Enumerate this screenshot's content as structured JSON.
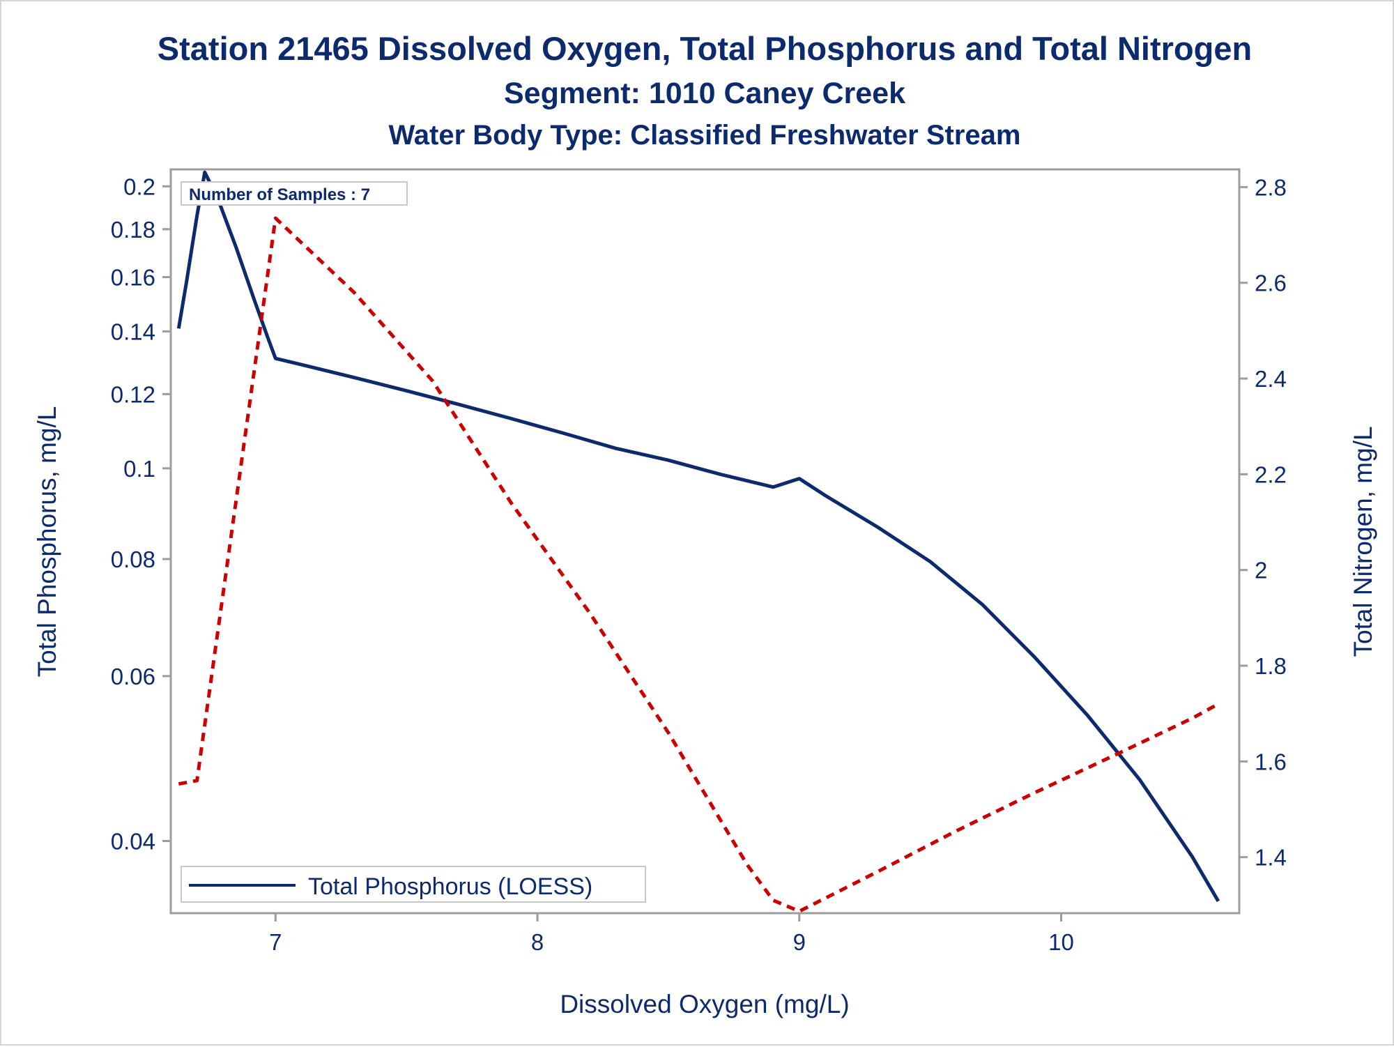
{
  "chart_data": {
    "type": "line",
    "title": "Station 21465  Dissolved Oxygen, Total Phosphorus and Total Nitrogen",
    "subtitle": "Segment: 1010  Caney Creek",
    "subtitle2": "Water Body Type: Classified Freshwater Stream",
    "xlabel": "Dissolved Oxygen (mg/L)",
    "ylabel": "Total Phosphorus, mg/L",
    "y2label": "Total Nitrogen, mg/L",
    "xlim": [
      6.6,
      10.68
    ],
    "ylim": [
      0.0335,
      0.2085
    ],
    "y_scale": "log",
    "y2lim": [
      1.283,
      2.837
    ],
    "x_ticks": [
      7,
      8,
      9,
      10
    ],
    "x_tick_labels": [
      "7",
      "8",
      "9",
      "10"
    ],
    "y_ticks": [
      0.04,
      0.06,
      0.08,
      0.1,
      0.12,
      0.14,
      0.16,
      0.18,
      0.2
    ],
    "y_tick_labels": [
      "0.04",
      "0.06",
      "0.08",
      "0.1",
      "0.12",
      "0.14",
      "0.16",
      "0.18",
      "0.2"
    ],
    "y2_ticks": [
      1.4,
      1.6,
      1.8,
      2.0,
      2.2,
      2.4,
      2.6,
      2.8
    ],
    "y2_tick_labels": [
      "1.4",
      "1.6",
      "1.8",
      "2",
      "2.2",
      "2.4",
      "2.6",
      "2.8"
    ],
    "annotation": "Number of Samples : 7",
    "legend": {
      "position": "bottom-left",
      "label": "Total Phosphorus (LOESS)"
    },
    "grid": false,
    "series": [
      {
        "name": "Total Phosphorus (LOESS)",
        "axis": "left",
        "style": "solid",
        "color": "#0c2a6e",
        "x": [
          6.63,
          6.66,
          6.7,
          6.73,
          6.78,
          6.85,
          6.92,
          6.97,
          7.0,
          7.1,
          7.3,
          7.5,
          7.7,
          7.9,
          8.1,
          8.3,
          8.5,
          8.7,
          8.9,
          9.0,
          9.1,
          9.3,
          9.5,
          9.7,
          9.9,
          10.1,
          10.3,
          10.5,
          10.6
        ],
        "y": [
          0.141,
          0.158,
          0.186,
          0.207,
          0.194,
          0.172,
          0.151,
          0.138,
          0.131,
          0.129,
          0.125,
          0.121,
          0.117,
          0.113,
          0.109,
          0.105,
          0.102,
          0.0985,
          0.0955,
          0.0975,
          0.0935,
          0.0865,
          0.0795,
          0.0715,
          0.0628,
          0.0545,
          0.0465,
          0.0385,
          0.0345
        ]
      },
      {
        "name": "Total Nitrogen",
        "axis": "right",
        "style": "dashed",
        "color": "#cc0000",
        "x": [
          6.63,
          6.7,
          7.0,
          7.3,
          7.6,
          7.9,
          8.2,
          8.5,
          8.8,
          8.9,
          9.0,
          9.3,
          9.6,
          9.9,
          10.2,
          10.5,
          10.6
        ],
        "y": [
          1.553,
          1.56,
          2.735,
          2.58,
          2.395,
          2.14,
          1.91,
          1.66,
          1.385,
          1.31,
          1.287,
          1.37,
          1.455,
          1.535,
          1.612,
          1.69,
          1.72
        ]
      }
    ]
  }
}
